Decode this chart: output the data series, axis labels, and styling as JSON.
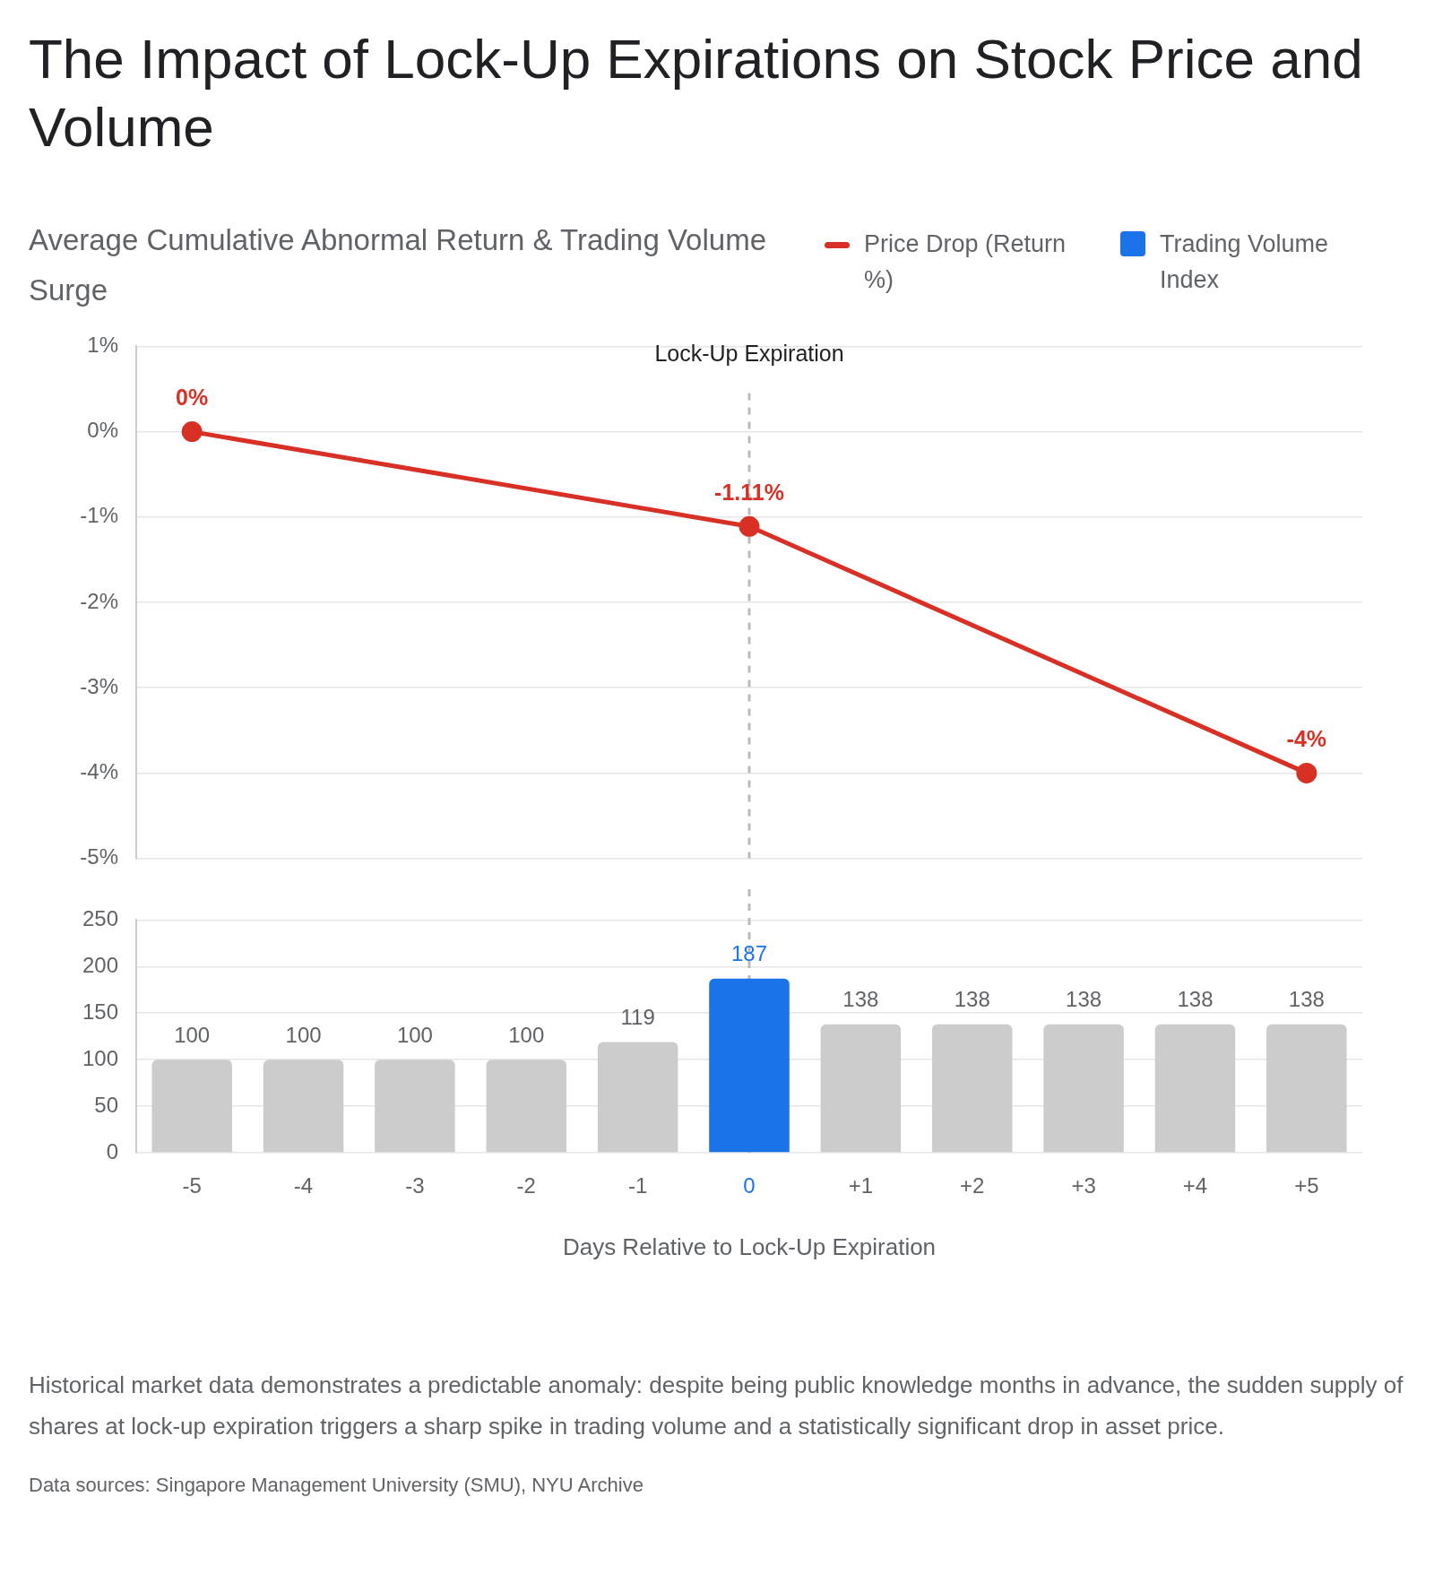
{
  "chart_data": [
    {
      "type": "line",
      "title": "The Impact of Lock-Up Expirations on Stock Price and Volume",
      "subtitle": "Average Cumulative Abnormal Return & Trading Volume Surge",
      "categories": [
        "-5",
        "-4",
        "-3",
        "-2",
        "-1",
        "0",
        "+1",
        "+2",
        "+3",
        "+4",
        "+5"
      ],
      "series": [
        {
          "name": "Price Drop (Return %)",
          "color": "#d93025",
          "values": [
            0,
            null,
            null,
            null,
            null,
            -1.11,
            null,
            null,
            null,
            null,
            -4
          ],
          "value_labels": [
            "0%",
            null,
            null,
            null,
            null,
            "-1.11%",
            null,
            null,
            null,
            null,
            "-4%"
          ]
        }
      ],
      "ylim": [
        -5,
        1
      ],
      "yticks": [
        {
          "value": 1,
          "label": "1%"
        },
        {
          "value": 0,
          "label": "0%"
        },
        {
          "value": -1,
          "label": "-1%"
        },
        {
          "value": -2,
          "label": "-2%"
        },
        {
          "value": -3,
          "label": "-3%"
        },
        {
          "value": -4,
          "label": "-4%"
        },
        {
          "value": -5,
          "label": "-5%"
        }
      ],
      "grid": "y",
      "legend": "top right",
      "marker": "circle",
      "line_style": "solid",
      "tick_labels": "y",
      "ref_lines": [
        {
          "axis": "x",
          "value": "0",
          "label": "Lock-Up Expiration",
          "color": "#bbbbbb",
          "line_style": "dashed"
        }
      ]
    },
    {
      "type": "bar",
      "categories": [
        "-5",
        "-4",
        "-3",
        "-2",
        "-1",
        "0",
        "+1",
        "+2",
        "+3",
        "+4",
        "+5"
      ],
      "series": [
        {
          "name": "Trading Volume Index",
          "color": "#1a73e8",
          "values": [
            100,
            100,
            100,
            100,
            119,
            187,
            138,
            138,
            138,
            138,
            138
          ],
          "colors": [
            "#cccccc",
            "#cccccc",
            "#cccccc",
            "#cccccc",
            "#cccccc",
            "#1a73e8",
            "#cccccc",
            "#cccccc",
            "#cccccc",
            "#cccccc",
            "#cccccc"
          ]
        }
      ],
      "ylim": [
        0,
        250
      ],
      "yticks": [
        0,
        50,
        100,
        150,
        200,
        250
      ],
      "grid": "y",
      "legend": "top right",
      "data_labels": true,
      "xlabel": "Days Relative to Lock-Up Expiration",
      "ref_lines": [
        {
          "axis": "x",
          "value": "0",
          "color": "#bbbbbb",
          "line_style": "dashed"
        }
      ],
      "annotations": [
        "Historical market data demonstrates a predictable anomaly: despite being public knowledge months in advance, the sudden supply of shares at lock-up expiration triggers a sharp spike in trading volume and a statistically significant drop in asset price.",
        "Data sources: Singapore Management University (SMU), NYU Archive"
      ]
    }
  ]
}
